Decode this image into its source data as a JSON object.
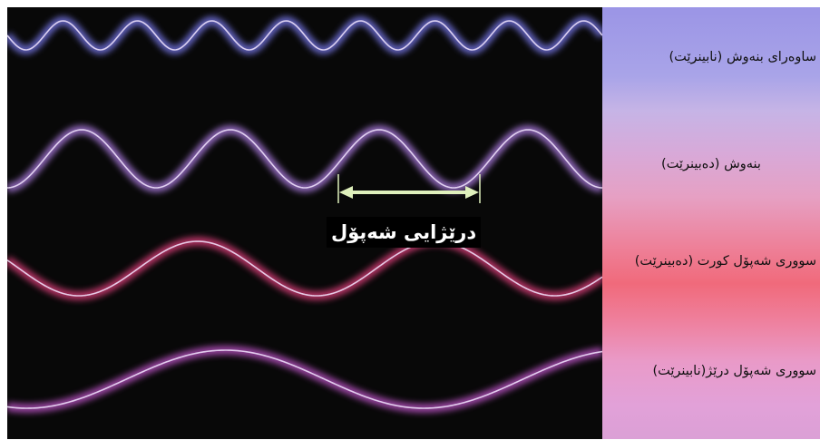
{
  "diagram": {
    "labels": {
      "wavelength": "درێژایی شەپۆل",
      "ultraviolet": "ساوەرای بنەوش (نابینرێت)",
      "violet": "بنەوش (دەبینرێت)",
      "short_red": "سووری شەپۆل کورت (دەبینرێت)",
      "long_red": "سووری شەپۆل درێژ(نابینرێت)"
    },
    "waves": [
      {
        "id": "ultraviolet",
        "color": "#7b7cf2",
        "cycles": 8.0
      },
      {
        "id": "violet",
        "color": "#b481ea",
        "cycles": 4.0
      },
      {
        "id": "short-red",
        "color": "#e6417f",
        "cycles": 2.5
      },
      {
        "id": "long-red",
        "color": "#c457cf",
        "cycles": 1.5
      }
    ],
    "colors": {
      "panel_background": "#080808",
      "arrow_color": "#dff0bc",
      "label_background": "#000000"
    }
  }
}
